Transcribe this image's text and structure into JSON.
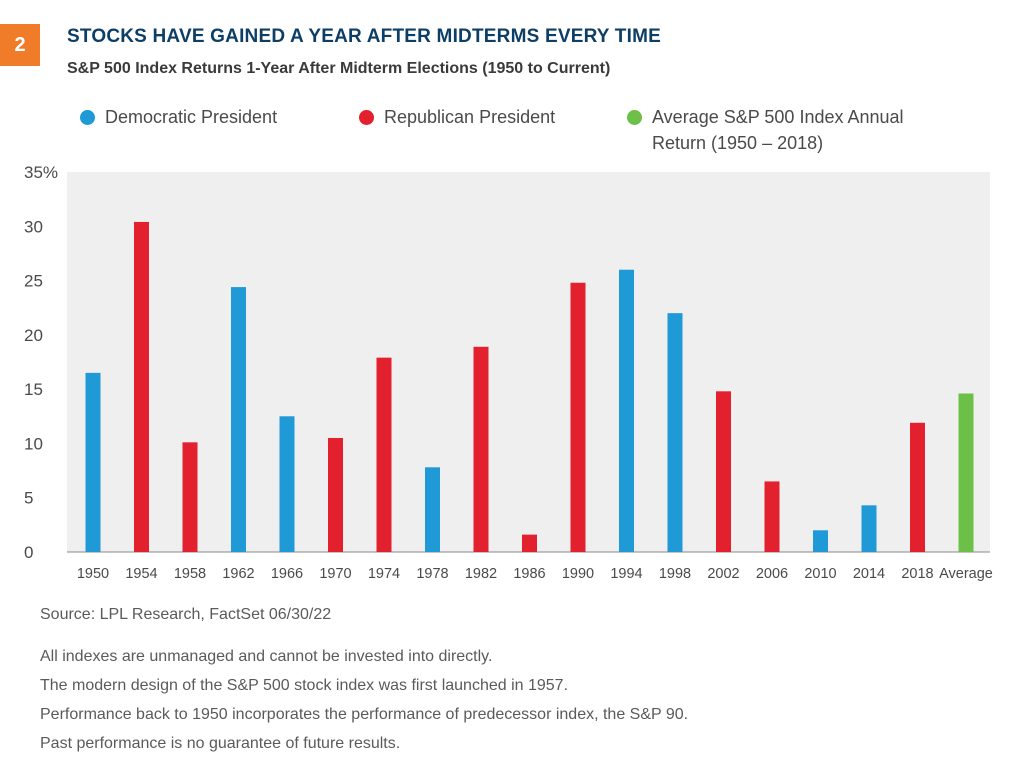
{
  "badge": "2",
  "title": "STOCKS HAVE GAINED A YEAR AFTER MIDTERMS EVERY TIME",
  "subtitle": "S&P 500 Index Returns 1-Year After Midterm Elections (1950 to Current)",
  "legend": [
    {
      "label": "Democratic President",
      "color": "#1f9ad6"
    },
    {
      "label": "Republican President",
      "color": "#e3202e"
    },
    {
      "label": "Average S&P 500 Index Annual\nReturn (1950 – 2018)",
      "color": "#6cbf47"
    }
  ],
  "chart_data": {
    "type": "bar",
    "categories": [
      "1950",
      "1954",
      "1958",
      "1962",
      "1966",
      "1970",
      "1974",
      "1978",
      "1982",
      "1986",
      "1990",
      "1994",
      "1998",
      "2002",
      "2006",
      "2010",
      "2014",
      "2018",
      "Average"
    ],
    "values": [
      16.5,
      30.4,
      10.1,
      24.4,
      12.5,
      10.5,
      17.9,
      7.8,
      18.9,
      1.6,
      24.8,
      26.0,
      22.0,
      14.8,
      6.5,
      2.0,
      4.3,
      11.9,
      14.6
    ],
    "party": [
      "D",
      "R",
      "R",
      "D",
      "D",
      "R",
      "R",
      "D",
      "R",
      "R",
      "R",
      "D",
      "D",
      "R",
      "R",
      "D",
      "D",
      "R",
      "A"
    ],
    "colors": {
      "D": "#1f9ad6",
      "R": "#e3202e",
      "A": "#6cbf47"
    },
    "ylim": [
      0,
      35
    ],
    "yticks": [
      "35%",
      "30",
      "25",
      "20",
      "15",
      "10",
      "5",
      "0"
    ],
    "ytick_values": [
      35,
      30,
      25,
      20,
      15,
      10,
      5,
      0
    ],
    "plot_background": "#efefef",
    "grid": false
  },
  "source": "Source: LPL Research, FactSet  06/30/22",
  "notes": [
    "All indexes are unmanaged and cannot be invested into directly.",
    "The modern design of the S&P 500 stock index was first launched in 1957.",
    "Performance back to 1950 incorporates the performance of predecessor index, the S&P 90.",
    "Past performance is no guarantee of future results."
  ]
}
